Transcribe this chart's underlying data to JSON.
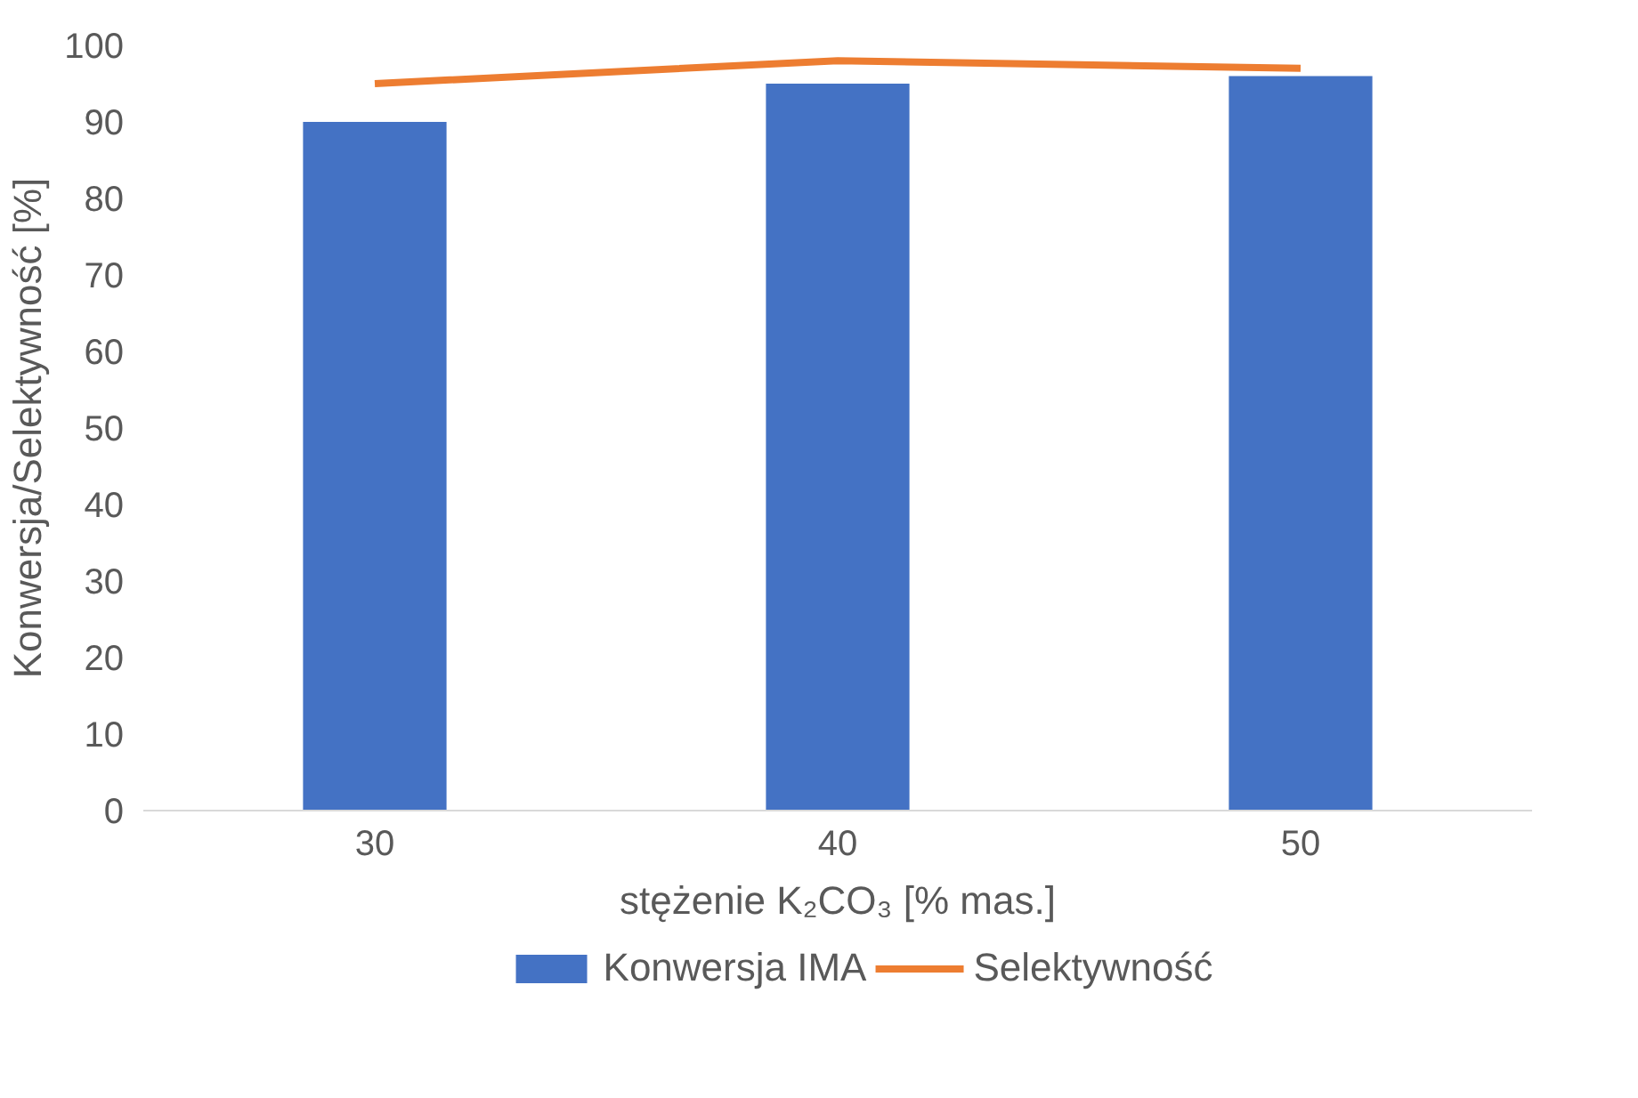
{
  "chart_data": {
    "type": "bar",
    "xlabel": "stężenie K₂CO₃ [% mas.]",
    "ylabel": "Konwersja/Selektywność [%]",
    "categories": [
      "30",
      "40",
      "50"
    ],
    "series": [
      {
        "name": "Konwersja IMA",
        "color": "#4472c4",
        "values": [
          90,
          95,
          96
        ]
      },
      {
        "name": "Selektywność",
        "type": "line",
        "color": "#ed7d31",
        "values": [
          95,
          98,
          97
        ]
      }
    ],
    "ylim": [
      0,
      100
    ],
    "yticks": [
      0,
      10,
      20,
      30,
      40,
      50,
      60,
      70,
      80,
      90,
      100
    ],
    "grid": false,
    "legend": "bottom"
  }
}
